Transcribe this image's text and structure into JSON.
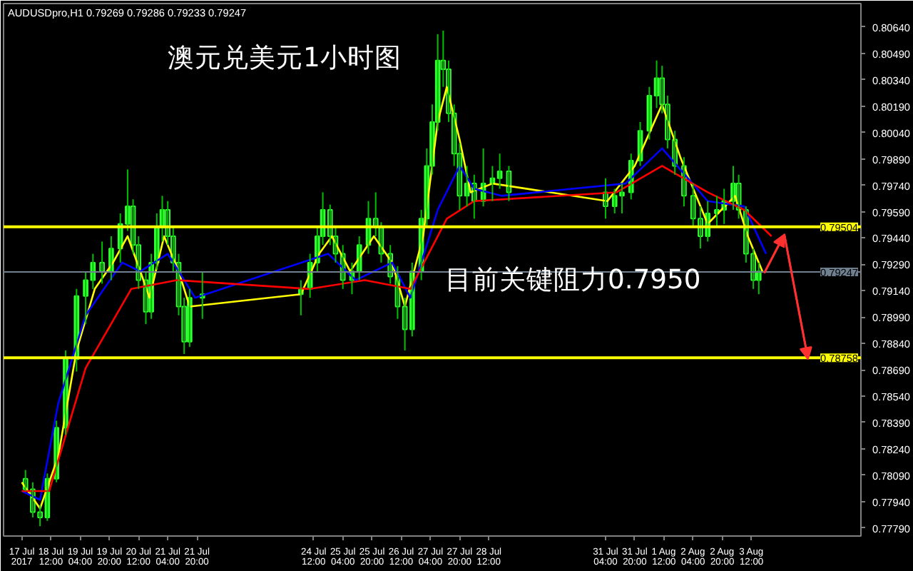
{
  "chart_data": {
    "type": "candlestick",
    "title": "澳元兑美元1小时图",
    "subtitle": "AUDUSDpro,H1 0.79269 0.79286 0.79233 0.79247",
    "annotations": [
      {
        "text": "目前关键阻力0.7950",
        "x": "2017-07-27T12:00",
        "y": 0.7925
      }
    ],
    "x": [
      "2017-07-17T22:00",
      "2017-07-18T02:00",
      "2017-07-18T06:00",
      "2017-07-18T10:00",
      "2017-07-18T15:00",
      "2017-07-18T20:00",
      "2017-07-19T02:00",
      "2017-07-19T07:00",
      "2017-07-19T11:00",
      "2017-07-19T16:00",
      "2017-07-19T21:00",
      "2017-07-20T02:00",
      "2017-07-20T06:00",
      "2017-07-20T09:00",
      "2017-07-20T12:00",
      "2017-07-20T16:00",
      "2017-07-20T19:00",
      "2017-07-20T22:00",
      "2017-07-21T01:00",
      "2017-07-21T04:00",
      "2017-07-21T07:00",
      "2017-07-21T10:00",
      "2017-07-21T13:00",
      "2017-07-21T16:00",
      "2017-07-21T23:00",
      "2017-07-24T05:00",
      "2017-07-24T10:00",
      "2017-07-24T14:00",
      "2017-07-24T17:00",
      "2017-07-24T21:00",
      "2017-07-25T00:00",
      "2017-07-25T04:00",
      "2017-07-25T09:00",
      "2017-07-25T13:00",
      "2017-07-25T18:00",
      "2017-07-25T22:00",
      "2017-07-26T01:00",
      "2017-07-26T06:00",
      "2017-07-26T10:00",
      "2017-07-26T14:00",
      "2017-07-26T18:00",
      "2017-07-26T23:00",
      "2017-07-27T02:00",
      "2017-07-27T05:00",
      "2017-07-27T08:00",
      "2017-07-27T11:00",
      "2017-07-27T14:00",
      "2017-07-27T17:00",
      "2017-07-27T20:00",
      "2017-07-28T00:00",
      "2017-07-28T04:00",
      "2017-07-28T09:00",
      "2017-07-28T14:00",
      "2017-07-28T18:00",
      "2017-07-28T23:00",
      "2017-07-31T04:00",
      "2017-07-31T09:00",
      "2017-07-31T13:00",
      "2017-07-31T18:00",
      "2017-07-31T23:00",
      "2017-08-01T04:00",
      "2017-08-01T08:00",
      "2017-08-01T11:00",
      "2017-08-01T14:00",
      "2017-08-01T18:00",
      "2017-08-01T23:00",
      "2017-08-02T04:00",
      "2017-08-02T08:00",
      "2017-08-02T12:00",
      "2017-08-02T17:00",
      "2017-08-02T21:00",
      "2017-08-03T02:00",
      "2017-08-03T05:00",
      "2017-08-03T09:00",
      "2017-08-03T13:00",
      "2017-08-03T16:00"
    ],
    "ohlc": [
      [
        0.7807,
        0.7812,
        0.78,
        0.7801
      ],
      [
        0.7801,
        0.7805,
        0.7785,
        0.7788
      ],
      [
        0.7788,
        0.7792,
        0.778,
        0.7785
      ],
      [
        0.7785,
        0.781,
        0.7783,
        0.7807
      ],
      [
        0.7807,
        0.784,
        0.7805,
        0.7836
      ],
      [
        0.7836,
        0.788,
        0.7832,
        0.7875
      ],
      [
        0.7875,
        0.7915,
        0.7868,
        0.7911
      ],
      [
        0.7911,
        0.7925,
        0.7895,
        0.792
      ],
      [
        0.792,
        0.7935,
        0.7915,
        0.793
      ],
      [
        0.793,
        0.7942,
        0.7918,
        0.7925
      ],
      [
        0.7925,
        0.7945,
        0.792,
        0.7938
      ],
      [
        0.7938,
        0.7958,
        0.793,
        0.7952
      ],
      [
        0.7952,
        0.7983,
        0.7948,
        0.7962
      ],
      [
        0.7962,
        0.7966,
        0.7935,
        0.794
      ],
      [
        0.794,
        0.7945,
        0.7915,
        0.792
      ],
      [
        0.792,
        0.7925,
        0.7895,
        0.7902
      ],
      [
        0.7902,
        0.7935,
        0.7898,
        0.793
      ],
      [
        0.793,
        0.7958,
        0.7926,
        0.795
      ],
      [
        0.795,
        0.7968,
        0.7942,
        0.796
      ],
      [
        0.796,
        0.7965,
        0.794,
        0.7945
      ],
      [
        0.7945,
        0.795,
        0.7925,
        0.793
      ],
      [
        0.793,
        0.7935,
        0.79,
        0.7905
      ],
      [
        0.7905,
        0.791,
        0.7878,
        0.7885
      ],
      [
        0.7885,
        0.7915,
        0.7882,
        0.791
      ],
      [
        0.791,
        0.7925,
        0.7898,
        0.7912
      ],
      [
        0.7912,
        0.792,
        0.79,
        0.7915
      ],
      [
        0.7915,
        0.7935,
        0.791,
        0.793
      ],
      [
        0.793,
        0.795,
        0.7925,
        0.7945
      ],
      [
        0.7945,
        0.797,
        0.794,
        0.796
      ],
      [
        0.796,
        0.7963,
        0.794,
        0.7945
      ],
      [
        0.7945,
        0.795,
        0.793,
        0.7935
      ],
      [
        0.7935,
        0.794,
        0.7915,
        0.792
      ],
      [
        0.792,
        0.793,
        0.7912,
        0.7925
      ],
      [
        0.7925,
        0.7945,
        0.792,
        0.794
      ],
      [
        0.794,
        0.7965,
        0.7935,
        0.7955
      ],
      [
        0.7955,
        0.797,
        0.7945,
        0.795
      ],
      [
        0.795,
        0.7953,
        0.793,
        0.7935
      ],
      [
        0.7935,
        0.794,
        0.7918,
        0.7922
      ],
      [
        0.7922,
        0.7928,
        0.7898,
        0.7905
      ],
      [
        0.7905,
        0.791,
        0.788,
        0.7892
      ],
      [
        0.7892,
        0.793,
        0.7888,
        0.7925
      ],
      [
        0.7925,
        0.796,
        0.792,
        0.7955
      ],
      [
        0.7955,
        0.7995,
        0.795,
        0.7985
      ],
      [
        0.7985,
        0.802,
        0.798,
        0.801
      ],
      [
        0.801,
        0.806,
        0.8005,
        0.8045
      ],
      [
        0.8045,
        0.8062,
        0.803,
        0.804
      ],
      [
        0.804,
        0.8045,
        0.801,
        0.8015
      ],
      [
        0.8015,
        0.802,
        0.7985,
        0.7992
      ],
      [
        0.7992,
        0.7998,
        0.796,
        0.7968
      ],
      [
        0.7968,
        0.7985,
        0.7962,
        0.7975
      ],
      [
        0.7975,
        0.798,
        0.7955,
        0.7965
      ],
      [
        0.7965,
        0.7995,
        0.7962,
        0.7975
      ],
      [
        0.7975,
        0.7985,
        0.7965,
        0.7978
      ],
      [
        0.7978,
        0.7992,
        0.7972,
        0.7982
      ],
      [
        0.7982,
        0.7985,
        0.7965,
        0.797
      ],
      [
        0.797,
        0.7978,
        0.7955,
        0.7962
      ],
      [
        0.7962,
        0.7972,
        0.7958,
        0.7968
      ],
      [
        0.7968,
        0.7975,
        0.7958,
        0.797
      ],
      [
        0.797,
        0.7992,
        0.7966,
        0.7988
      ],
      [
        0.7988,
        0.801,
        0.7985,
        0.8005
      ],
      [
        0.8005,
        0.803,
        0.8,
        0.8025
      ],
      [
        0.8025,
        0.8045,
        0.8018,
        0.8035
      ],
      [
        0.8035,
        0.8042,
        0.8015,
        0.802
      ],
      [
        0.802,
        0.8025,
        0.7995,
        0.8
      ],
      [
        0.8,
        0.8005,
        0.798,
        0.7985
      ],
      [
        0.7985,
        0.799,
        0.7962,
        0.7968
      ],
      [
        0.7968,
        0.7975,
        0.795,
        0.7955
      ],
      [
        0.7955,
        0.7962,
        0.7938,
        0.7945
      ],
      [
        0.7945,
        0.7965,
        0.7942,
        0.7958
      ],
      [
        0.7958,
        0.7968,
        0.795,
        0.796
      ],
      [
        0.796,
        0.7972,
        0.7952,
        0.7965
      ],
      [
        0.7965,
        0.7985,
        0.796,
        0.7975
      ],
      [
        0.7975,
        0.798,
        0.7955,
        0.796
      ],
      [
        0.796,
        0.7962,
        0.793,
        0.7935
      ],
      [
        0.7935,
        0.7938,
        0.7915,
        0.792
      ],
      [
        0.792,
        0.793,
        0.7912,
        0.7925
      ]
    ],
    "series": [
      {
        "type": "line",
        "color": "#ffff00",
        "x": [
          "2017-07-17T20:00",
          "2017-07-18T06:00",
          "2017-07-18T16:00",
          "2017-07-19T02:00",
          "2017-07-19T12:00",
          "2017-07-19T22:00",
          "2017-07-20T06:00",
          "2017-07-20T13:00",
          "2017-07-20T18:00",
          "2017-07-21T02:00",
          "2017-07-21T10:00",
          "2017-07-21T16:00",
          "2017-07-24T05:00",
          "2017-07-24T15:00",
          "2017-07-24T22:00",
          "2017-07-25T08:00",
          "2017-07-25T21:00",
          "2017-07-26T07:00",
          "2017-07-26T14:00",
          "2017-07-27T00:00",
          "2017-07-27T08:00",
          "2017-07-27T13:00",
          "2017-07-27T20:00",
          "2017-07-28T02:00",
          "2017-07-28T14:00",
          "2017-07-31T05:00",
          "2017-07-31T20:00",
          "2017-08-01T11:00",
          "2017-08-01T21:00",
          "2017-08-02T12:00",
          "2017-08-03T03:00",
          "2017-08-03T10:00",
          "2017-08-03T18:00"
        ],
        "values": [
          0.7805,
          0.779,
          0.782,
          0.788,
          0.7915,
          0.793,
          0.7945,
          0.7925,
          0.791,
          0.7945,
          0.7925,
          0.7905,
          0.7912,
          0.7935,
          0.7945,
          0.7925,
          0.7945,
          0.793,
          0.7905,
          0.7945,
          0.801,
          0.803,
          0.8,
          0.797,
          0.7975,
          0.7965,
          0.7985,
          0.802,
          0.799,
          0.7952,
          0.7968,
          0.7945,
          0.7925
        ]
      },
      {
        "type": "line",
        "color": "#0000ff",
        "x": [
          "2017-07-17T20:00",
          "2017-07-18T06:00",
          "2017-07-18T16:00",
          "2017-07-19T07:00",
          "2017-07-20T03:00",
          "2017-07-20T13:00",
          "2017-07-21T04:00",
          "2017-07-21T19:00",
          "2017-07-24T20:00",
          "2017-07-25T11:00",
          "2017-07-26T07:00",
          "2017-07-26T17:00",
          "2017-07-27T08:00",
          "2017-07-27T20:00",
          "2017-07-28T04:00",
          "2017-07-28T19:00",
          "2017-07-31T15:00",
          "2017-08-01T11:00",
          "2017-08-02T12:00",
          "2017-08-03T08:00",
          "2017-08-03T20:00"
        ],
        "values": [
          0.78,
          0.7795,
          0.785,
          0.79,
          0.793,
          0.7925,
          0.7935,
          0.791,
          0.7935,
          0.792,
          0.793,
          0.791,
          0.796,
          0.7985,
          0.7972,
          0.7968,
          0.7975,
          0.7995,
          0.7965,
          0.7962,
          0.7935
        ]
      },
      {
        "type": "line",
        "color": "#ff0000",
        "x": [
          "2017-07-17T20:00",
          "2017-07-18T11:00",
          "2017-07-19T07:00",
          "2017-07-20T08:00",
          "2017-07-21T09:00",
          "2017-07-24T10:00",
          "2017-07-25T16:00",
          "2017-07-26T17:00",
          "2017-07-27T13:00",
          "2017-07-28T04:00",
          "2017-07-31T10:00",
          "2017-08-01T11:00",
          "2017-08-02T12:00",
          "2017-08-03T08:00",
          "2017-08-03T23:00"
        ],
        "values": [
          0.78,
          0.78,
          0.787,
          0.7915,
          0.792,
          0.7915,
          0.792,
          0.7915,
          0.7955,
          0.7965,
          0.797,
          0.7985,
          0.797,
          0.796,
          0.7945
        ]
      },
      {
        "type": "line",
        "color": "#ff3030",
        "x": [
          "2017-08-03T19:00",
          "2017-08-04T06:00",
          "2017-08-04T19:00"
        ],
        "values": [
          0.7924,
          0.7946,
          0.7875
        ]
      }
    ],
    "xlim": [
      "2017-07-17T10:00",
      "2017-08-06T00:00"
    ],
    "ylim": [
      0.77744,
      0.80774
    ],
    "xticks": [
      {
        "value": "2017-07-17T20:00",
        "label": "17 Jul 2017"
      },
      {
        "value": "2017-07-18T12:00",
        "label": "18 Jul 12:00"
      },
      {
        "value": "2017-07-19T04:00",
        "label": "19 Jul 04:00"
      },
      {
        "value": "2017-07-19T20:00",
        "label": "19 Jul 20:00"
      },
      {
        "value": "2017-07-20T12:00",
        "label": "20 Jul 12:00"
      },
      {
        "value": "2017-07-21T04:00",
        "label": "21 Jul 04:00"
      },
      {
        "value": "2017-07-21T20:00",
        "label": "21 Jul 20:00"
      },
      {
        "value": "2017-07-24T12:00",
        "label": "24 Jul 12:00"
      },
      {
        "value": "2017-07-25T04:00",
        "label": "25 Jul 04:00"
      },
      {
        "value": "2017-07-25T20:00",
        "label": "25 Jul 20:00"
      },
      {
        "value": "2017-07-26T12:00",
        "label": "26 Jul 12:00"
      },
      {
        "value": "2017-07-27T04:00",
        "label": "27 Jul 04:00"
      },
      {
        "value": "2017-07-27T20:00",
        "label": "27 Jul 20:00"
      },
      {
        "value": "2017-07-28T12:00",
        "label": "28 Jul 12:00"
      },
      {
        "value": "2017-07-31T04:00",
        "label": "31 Jul 04:00"
      },
      {
        "value": "2017-07-31T20:00",
        "label": "31 Jul 20:00"
      },
      {
        "value": "2017-08-01T12:00",
        "label": "1 Aug 12:00"
      },
      {
        "value": "2017-08-02T04:00",
        "label": "2 Aug 04:00"
      },
      {
        "value": "2017-08-02T20:00",
        "label": "2 Aug 20:00"
      },
      {
        "value": "2017-08-03T12:00",
        "label": "3 Aug 12:00"
      }
    ],
    "yticks": [
      {
        "value": 0.7779,
        "label": "0.77790"
      },
      {
        "value": 0.7794,
        "label": "0.77940"
      },
      {
        "value": 0.7809,
        "label": "0.78090"
      },
      {
        "value": 0.7824,
        "label": "0.78240"
      },
      {
        "value": 0.7839,
        "label": "0.78390"
      },
      {
        "value": 0.7854,
        "label": "0.78540"
      },
      {
        "value": 0.7869,
        "label": "0.78690"
      },
      {
        "value": 0.7884,
        "label": "0.78840"
      },
      {
        "value": 0.7899,
        "label": "0.78990"
      },
      {
        "value": 0.7914,
        "label": "0.79140"
      },
      {
        "value": 0.7929,
        "label": "0.79290"
      },
      {
        "value": 0.7944,
        "label": "0.79440"
      },
      {
        "value": 0.7959,
        "label": "0.79590"
      },
      {
        "value": 0.7974,
        "label": "0.79740"
      },
      {
        "value": 0.7989,
        "label": "0.79890"
      },
      {
        "value": 0.8004,
        "label": "0.80040"
      },
      {
        "value": 0.8019,
        "label": "0.80190"
      },
      {
        "value": 0.8034,
        "label": "0.80340"
      },
      {
        "value": 0.8049,
        "label": "0.80490"
      },
      {
        "value": 0.8064,
        "label": "0.80640"
      }
    ],
    "ref_lines": [
      {
        "axis": "y",
        "value": 0.79504,
        "label": "0.79504",
        "color": "#ffff00"
      },
      {
        "axis": "y",
        "value": 0.78758,
        "label": "0.78758",
        "color": "#ffff00"
      },
      {
        "axis": "y",
        "value": 0.79247,
        "label": "0.79247",
        "color": "#708090"
      }
    ],
    "grid": false
  }
}
